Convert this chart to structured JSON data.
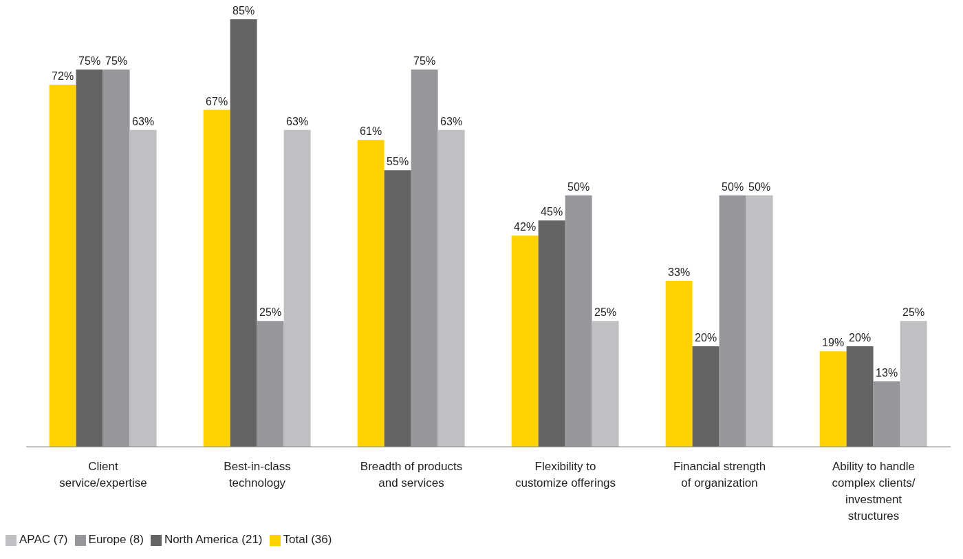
{
  "chart_data": {
    "type": "bar",
    "categories": [
      "Client service/expertise",
      "Best-in-class technology",
      "Breadth of products and services",
      "Flexibility to customize offerings",
      "Financial strength of organization",
      "Ability to handle complex clients/ investment structures"
    ],
    "series": [
      {
        "name": "Total (36)",
        "color": "#ffd200",
        "values": [
          72,
          67,
          61,
          42,
          33,
          19
        ],
        "value_labels": [
          "72%",
          "67%",
          "61%",
          "42%",
          "33%",
          "19%"
        ]
      },
      {
        "name": "North America (21)",
        "color": "#646464",
        "values": [
          75,
          85,
          55,
          45,
          20,
          20
        ],
        "value_labels": [
          "75%",
          "85%",
          "55%",
          "45%",
          "20%",
          "20%"
        ]
      },
      {
        "name": "Europe (8)",
        "color": "#97979b",
        "values": [
          75,
          25,
          75,
          50,
          50,
          13
        ],
        "value_labels": [
          "75%",
          "25%",
          "75%",
          "50%",
          "50%",
          "13%"
        ]
      },
      {
        "name": "APAC (7)",
        "color": "#c0c0c2",
        "values": [
          63,
          63,
          63,
          25,
          50,
          25
        ],
        "value_labels": [
          "63%",
          "63%",
          "63%",
          "25%",
          "50%",
          "25%"
        ]
      }
    ],
    "grid": false,
    "legend": "bottom left"
  }
}
